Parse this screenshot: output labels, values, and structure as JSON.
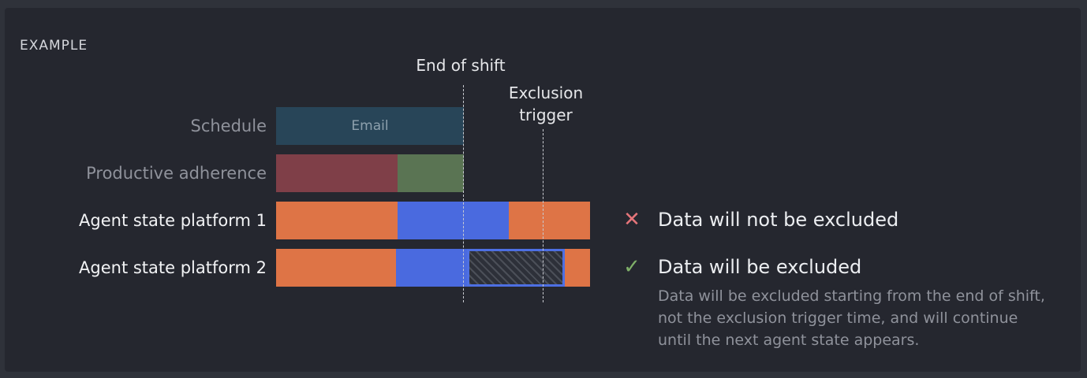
{
  "section": {
    "label": "EXAMPLE"
  },
  "markers": {
    "end_of_shift": "End of shift",
    "exclusion_trigger": "Exclusion trigger"
  },
  "rows": [
    {
      "label": "Schedule",
      "segments": [
        {
          "text": "Email",
          "color": "#284558"
        }
      ]
    },
    {
      "label": "Productive adherence",
      "segments": [
        {
          "color": "#7f3f48"
        },
        {
          "color": "#5a7453"
        }
      ]
    },
    {
      "label": "Agent state platform 1",
      "segments": [
        {
          "color": "#de7446"
        },
        {
          "color": "#4a6adf"
        },
        {
          "color": "#de7446"
        }
      ]
    },
    {
      "label": "Agent state platform 2",
      "segments": [
        {
          "color": "#de7446"
        },
        {
          "color": "#4a6adf"
        },
        {
          "color": "hatched"
        },
        {
          "color": "#de7446"
        }
      ]
    }
  ],
  "results": [
    {
      "icon": "x-icon",
      "icon_color": "#e5757a",
      "title": "Data will not be excluded"
    },
    {
      "icon": "check-icon",
      "icon_color": "#7fb069",
      "title": "Data will be excluded",
      "description": "Data will be excluded starting from the end of shift, not the exclusion trigger time, and will continue until the next agent state appears."
    }
  ],
  "colors": {
    "background": "#2f323a",
    "card": "#25272f",
    "orange": "#de7446",
    "blue": "#4a6adf",
    "schedule_email": "#284558",
    "adherence_red": "#7f3f48",
    "adherence_green": "#5a7453"
  }
}
